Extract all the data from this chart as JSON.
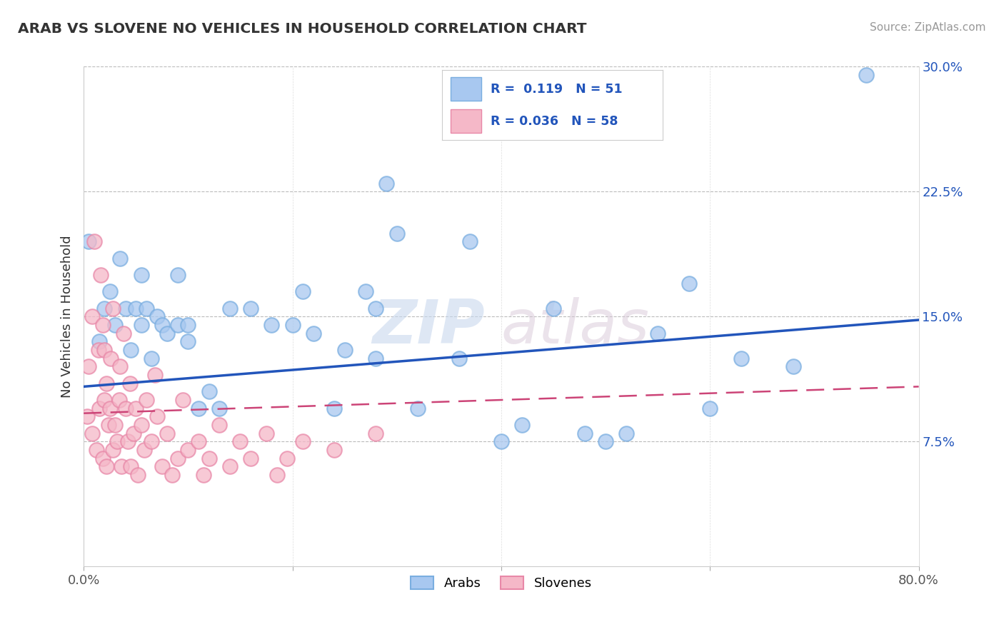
{
  "title": "ARAB VS SLOVENE NO VEHICLES IN HOUSEHOLD CORRELATION CHART",
  "source": "Source: ZipAtlas.com",
  "ylabel": "No Vehicles in Household",
  "xlim": [
    0.0,
    0.8
  ],
  "ylim": [
    0.0,
    0.3
  ],
  "xticks": [
    0.0,
    0.2,
    0.4,
    0.6,
    0.8
  ],
  "xticklabels": [
    "0.0%",
    "",
    "",
    "",
    "80.0%"
  ],
  "yticks": [
    0.075,
    0.15,
    0.225,
    0.3
  ],
  "yticklabels": [
    "7.5%",
    "15.0%",
    "22.5%",
    "30.0%"
  ],
  "grid_yticks": [
    0.075,
    0.15,
    0.225,
    0.3
  ],
  "legend_arab_label": "Arabs",
  "legend_slovene_label": "Slovenes",
  "arab_color": "#A8C8F0",
  "arab_edge_color": "#7AAEE0",
  "slovene_color": "#F5B8C8",
  "slovene_edge_color": "#E888A8",
  "arab_line_color": "#2255BB",
  "slovene_line_color": "#CC4477",
  "arab_R": 0.119,
  "arab_N": 51,
  "slovene_R": 0.036,
  "slovene_N": 58,
  "watermark_zip": "ZIP",
  "watermark_atlas": "atlas",
  "background_color": "#FFFFFF",
  "arab_scatter_x": [
    0.005,
    0.015,
    0.02,
    0.025,
    0.03,
    0.035,
    0.04,
    0.045,
    0.05,
    0.055,
    0.055,
    0.06,
    0.065,
    0.07,
    0.075,
    0.08,
    0.09,
    0.09,
    0.1,
    0.1,
    0.11,
    0.12,
    0.13,
    0.14,
    0.16,
    0.18,
    0.2,
    0.21,
    0.22,
    0.24,
    0.25,
    0.27,
    0.28,
    0.28,
    0.29,
    0.3,
    0.32,
    0.36,
    0.37,
    0.4,
    0.42,
    0.45,
    0.48,
    0.5,
    0.52,
    0.55,
    0.58,
    0.6,
    0.63,
    0.68,
    0.75
  ],
  "arab_scatter_y": [
    0.195,
    0.135,
    0.155,
    0.165,
    0.145,
    0.185,
    0.155,
    0.13,
    0.155,
    0.175,
    0.145,
    0.155,
    0.125,
    0.15,
    0.145,
    0.14,
    0.145,
    0.175,
    0.145,
    0.135,
    0.095,
    0.105,
    0.095,
    0.155,
    0.155,
    0.145,
    0.145,
    0.165,
    0.14,
    0.095,
    0.13,
    0.165,
    0.125,
    0.155,
    0.23,
    0.2,
    0.095,
    0.125,
    0.195,
    0.075,
    0.085,
    0.155,
    0.08,
    0.075,
    0.08,
    0.14,
    0.17,
    0.095,
    0.125,
    0.12,
    0.295
  ],
  "slovene_scatter_x": [
    0.003,
    0.005,
    0.008,
    0.008,
    0.01,
    0.012,
    0.014,
    0.015,
    0.016,
    0.018,
    0.018,
    0.02,
    0.02,
    0.022,
    0.022,
    0.024,
    0.025,
    0.026,
    0.028,
    0.028,
    0.03,
    0.032,
    0.034,
    0.035,
    0.036,
    0.038,
    0.04,
    0.042,
    0.044,
    0.045,
    0.048,
    0.05,
    0.052,
    0.055,
    0.058,
    0.06,
    0.065,
    0.068,
    0.07,
    0.075,
    0.08,
    0.085,
    0.09,
    0.095,
    0.1,
    0.11,
    0.115,
    0.12,
    0.13,
    0.14,
    0.15,
    0.16,
    0.175,
    0.185,
    0.195,
    0.21,
    0.24,
    0.28
  ],
  "slovene_scatter_y": [
    0.09,
    0.12,
    0.08,
    0.15,
    0.195,
    0.07,
    0.13,
    0.095,
    0.175,
    0.065,
    0.145,
    0.1,
    0.13,
    0.11,
    0.06,
    0.085,
    0.095,
    0.125,
    0.07,
    0.155,
    0.085,
    0.075,
    0.1,
    0.12,
    0.06,
    0.14,
    0.095,
    0.075,
    0.11,
    0.06,
    0.08,
    0.095,
    0.055,
    0.085,
    0.07,
    0.1,
    0.075,
    0.115,
    0.09,
    0.06,
    0.08,
    0.055,
    0.065,
    0.1,
    0.07,
    0.075,
    0.055,
    0.065,
    0.085,
    0.06,
    0.075,
    0.065,
    0.08,
    0.055,
    0.065,
    0.075,
    0.07,
    0.08
  ]
}
